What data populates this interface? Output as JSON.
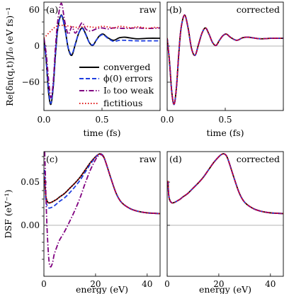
{
  "chart_data": [
    {
      "id": "a",
      "type": "line",
      "panel_label": "(a)",
      "tag": "raw",
      "xlabel": "time (fs)",
      "ylabel": "Re[δn(q,t)]/I₀ (eV fs)⁻¹",
      "xlim": [
        0,
        1.0
      ],
      "ylim": [
        -140,
        70
      ],
      "xticks": [
        0.0,
        0.5
      ],
      "xtick_labels": [
        "0.0",
        "0.5"
      ],
      "yticks": [
        60,
        0,
        -60
      ],
      "ytick_labels": [
        "60",
        "0",
        "−60"
      ],
      "grid": false,
      "zero_line": true,
      "legend": {
        "placement": "center-right",
        "entries": [
          "converged",
          "ϕ(0) errors",
          "I₀ too weak",
          "fictitious"
        ]
      },
      "series": [
        {
          "name": "converged",
          "color": "#000000",
          "dash": "solid",
          "x": [
            0,
            0.02,
            0.04,
            0.06,
            0.08,
            0.1,
            0.12,
            0.15,
            0.18,
            0.21,
            0.24,
            0.27,
            0.3,
            0.33,
            0.36,
            0.39,
            0.42,
            0.45,
            0.48,
            0.51,
            0.55,
            0.6,
            0.65,
            0.7,
            0.8,
            0.9,
            1.0
          ],
          "y": [
            0,
            -45,
            -105,
            -128,
            -95,
            -30,
            20,
            45,
            20,
            -20,
            -33,
            -12,
            10,
            20,
            8,
            -8,
            -14,
            -4,
            5,
            8,
            1,
            -4,
            1,
            2,
            -1,
            0,
            0
          ]
        },
        {
          "name": "ϕ(0) errors",
          "color": "#1f3fe0",
          "dash": "dashed",
          "x": [
            0,
            0.02,
            0.04,
            0.06,
            0.08,
            0.1,
            0.12,
            0.15,
            0.18,
            0.21,
            0.24,
            0.27,
            0.3,
            0.33,
            0.36,
            0.39,
            0.42,
            0.45,
            0.48,
            0.51,
            0.55,
            0.6,
            0.65,
            0.7,
            0.8,
            0.9,
            1.0
          ],
          "y": [
            0,
            -43,
            -100,
            -126,
            -92,
            -28,
            20,
            44,
            19,
            -19,
            -31,
            -11,
            10,
            19,
            7,
            -8,
            -13,
            -4,
            4,
            7,
            0,
            -6,
            -4,
            -4,
            -5,
            -5,
            -5
          ]
        },
        {
          "name": "I₀ too weak",
          "color": "#800080",
          "dash": "dashdot",
          "x": [
            0,
            0.02,
            0.04,
            0.06,
            0.08,
            0.1,
            0.12,
            0.15,
            0.18,
            0.21,
            0.24,
            0.27,
            0.3,
            0.33,
            0.36,
            0.4,
            0.45,
            0.5,
            0.55,
            0.6,
            0.7,
            0.8,
            0.9,
            1.0
          ],
          "y": [
            0,
            -30,
            -80,
            -115,
            -85,
            -15,
            35,
            68,
            32,
            8,
            22,
            10,
            20,
            30,
            18,
            14,
            18,
            20,
            18,
            20,
            19,
            20,
            19,
            20
          ]
        },
        {
          "name": "fictitious",
          "color": "#e01818",
          "dash": "dotted",
          "x": [
            0,
            0.05,
            0.1,
            0.15,
            0.2,
            0.25,
            0.3,
            0.35,
            0.4,
            0.45,
            0.5,
            0.55,
            0.6,
            0.65,
            0.7,
            0.75,
            0.8,
            0.85,
            0.9,
            0.95,
            1.0
          ],
          "y": [
            0,
            12,
            22,
            25,
            24,
            22,
            21,
            23,
            22,
            21,
            23,
            22,
            20,
            23,
            22,
            20,
            22,
            21,
            19,
            21,
            20
          ]
        }
      ]
    },
    {
      "id": "b",
      "type": "line",
      "panel_label": "(b)",
      "tag": "corrected",
      "xlabel": "time (fs)",
      "ylabel": "",
      "xlim": [
        0,
        1.0
      ],
      "ylim": [
        -140,
        70
      ],
      "xticks": [
        0.0,
        0.5
      ],
      "xtick_labels": [
        "0.0",
        "0.5"
      ],
      "yticks": [
        60,
        0,
        -60
      ],
      "ytick_labels": [],
      "grid": false,
      "zero_line": true,
      "series": [
        {
          "name": "converged",
          "color": "#000000",
          "dash": "solid",
          "x": [
            0,
            0.02,
            0.04,
            0.06,
            0.08,
            0.1,
            0.12,
            0.15,
            0.18,
            0.21,
            0.24,
            0.27,
            0.3,
            0.33,
            0.36,
            0.39,
            0.42,
            0.45,
            0.48,
            0.51,
            0.55,
            0.6,
            0.65,
            0.7,
            0.8,
            0.9,
            1.0
          ],
          "y": [
            0,
            -45,
            -105,
            -128,
            -95,
            -30,
            20,
            45,
            20,
            -20,
            -33,
            -12,
            10,
            20,
            8,
            -8,
            -14,
            -4,
            5,
            8,
            1,
            -4,
            1,
            2,
            -1,
            0,
            0
          ]
        },
        {
          "name": "ϕ(0) errors",
          "color": "#1f3fe0",
          "dash": "dashed",
          "x": [
            0,
            0.02,
            0.04,
            0.06,
            0.08,
            0.1,
            0.12,
            0.15,
            0.18,
            0.21,
            0.24,
            0.27,
            0.3,
            0.33,
            0.36,
            0.39,
            0.42,
            0.45,
            0.48,
            0.51,
            0.55,
            0.6,
            0.65,
            0.7,
            0.8,
            0.9,
            1.0
          ],
          "y": [
            0,
            -45,
            -105,
            -128,
            -95,
            -30,
            20,
            45,
            20,
            -20,
            -33,
            -12,
            10,
            20,
            8,
            -8,
            -14,
            -4,
            5,
            8,
            1,
            -4,
            1,
            2,
            -1,
            0,
            0
          ]
        },
        {
          "name": "I₀ too weak",
          "color": "#800080",
          "dash": "dashdot",
          "x": [
            0,
            0.02,
            0.04,
            0.06,
            0.08,
            0.1,
            0.12,
            0.15,
            0.18,
            0.21,
            0.24,
            0.27,
            0.3,
            0.33,
            0.36,
            0.39,
            0.42,
            0.45,
            0.48,
            0.51,
            0.55,
            0.6,
            0.65,
            0.7,
            0.8,
            0.9,
            1.0
          ],
          "y": [
            0,
            -45,
            -105,
            -128,
            -95,
            -30,
            20,
            45,
            20,
            -20,
            -33,
            -12,
            10,
            20,
            8,
            -8,
            -14,
            -4,
            5,
            8,
            1,
            -4,
            1,
            2,
            -1,
            0,
            0
          ]
        },
        {
          "name": "fictitious",
          "color": "#e01818",
          "dash": "dotted",
          "x": [
            0,
            0.02,
            0.04,
            0.06,
            0.08,
            0.1,
            0.12,
            0.15,
            0.18,
            0.21,
            0.24,
            0.27,
            0.3,
            0.33,
            0.36,
            0.39,
            0.42,
            0.45,
            0.48,
            0.51,
            0.55,
            0.6,
            0.65,
            0.7,
            0.8,
            0.9,
            1.0
          ],
          "y": [
            0,
            -45,
            -105,
            -128,
            -95,
            -30,
            20,
            45,
            20,
            -20,
            -33,
            -12,
            10,
            20,
            8,
            -8,
            -14,
            -4,
            5,
            8,
            1,
            -4,
            1,
            2,
            -1,
            0,
            0
          ]
        }
      ]
    },
    {
      "id": "c",
      "type": "line",
      "panel_label": "(c)",
      "tag": "raw",
      "xlabel": "energy (eV)",
      "ylabel": "DSF (eV⁻¹)",
      "xlim": [
        0,
        45
      ],
      "ylim": [
        -0.085,
        0.085
      ],
      "xticks": [
        0,
        20,
        40
      ],
      "xtick_labels": [
        "0",
        "20",
        "40"
      ],
      "yticks": [
        0.05,
        0.0
      ],
      "ytick_labels": [
        "0.05",
        "0.00"
      ],
      "grid": false,
      "zero_line": true,
      "series": [
        {
          "name": "converged",
          "color": "#000000",
          "dash": "solid",
          "x": [
            0.3,
            0.6,
            1,
            1.5,
            2,
            3,
            4,
            5,
            6,
            8,
            10,
            12,
            14,
            16,
            18,
            20,
            21,
            22,
            23,
            24,
            26,
            28,
            30,
            33,
            36,
            40,
            45
          ],
          "y": [
            0.05,
            0.028,
            0.02,
            0.016,
            0.015,
            0.016,
            0.018,
            0.02,
            0.023,
            0.028,
            0.035,
            0.042,
            0.05,
            0.06,
            0.07,
            0.078,
            0.081,
            0.082,
            0.079,
            0.07,
            0.048,
            0.028,
            0.016,
            0.008,
            0.004,
            0.0015,
            0.0005
          ]
        },
        {
          "name": "ϕ(0) errors",
          "color": "#1f3fe0",
          "dash": "dashed",
          "x": [
            0.3,
            0.6,
            1,
            1.5,
            2,
            3,
            4,
            5,
            6,
            8,
            10,
            12,
            14,
            16,
            18,
            20,
            21,
            22,
            23,
            24,
            26,
            28,
            30,
            33,
            36,
            40,
            45
          ],
          "y": [
            0.06,
            0.025,
            0.014,
            0.01,
            0.008,
            0.009,
            0.011,
            0.014,
            0.017,
            0.022,
            0.029,
            0.037,
            0.046,
            0.057,
            0.068,
            0.077,
            0.081,
            0.082,
            0.079,
            0.07,
            0.048,
            0.028,
            0.016,
            0.008,
            0.004,
            0.0015,
            0.0005
          ]
        },
        {
          "name": "I₀ too weak",
          "color": "#800080",
          "dash": "dashdot",
          "x": [
            0.3,
            0.6,
            1,
            1.5,
            2,
            2.5,
            3,
            3.5,
            4,
            5,
            6,
            8,
            10,
            12,
            14,
            16,
            18,
            20,
            21,
            22,
            23,
            24,
            26,
            28,
            30,
            33,
            36,
            40,
            45
          ],
          "y": [
            0.085,
            0.05,
            0.0,
            -0.04,
            -0.065,
            -0.072,
            -0.07,
            -0.064,
            -0.055,
            -0.045,
            -0.036,
            -0.024,
            -0.01,
            0.005,
            0.022,
            0.042,
            0.06,
            0.074,
            0.079,
            0.081,
            0.078,
            0.07,
            0.048,
            0.028,
            0.016,
            0.008,
            0.004,
            0.0015,
            0.0005
          ]
        },
        {
          "name": "fictitious",
          "color": "#e01818",
          "dash": "dotted",
          "x": [
            0.3,
            0.6,
            1,
            1.5,
            2,
            3,
            4,
            5,
            6,
            8,
            10,
            12,
            14,
            16,
            18,
            20,
            21,
            22,
            23,
            24,
            26,
            28,
            30,
            33,
            36,
            40,
            45
          ],
          "y": [
            0.05,
            0.028,
            0.02,
            0.016,
            0.015,
            0.016,
            0.018,
            0.02,
            0.023,
            0.028,
            0.035,
            0.042,
            0.05,
            0.06,
            0.07,
            0.078,
            0.081,
            0.082,
            0.079,
            0.07,
            0.048,
            0.028,
            0.016,
            0.008,
            0.004,
            0.0015,
            0.0005
          ]
        }
      ]
    },
    {
      "id": "d",
      "type": "line",
      "panel_label": "(d)",
      "tag": "corrected",
      "xlabel": "energy (eV)",
      "ylabel": "",
      "xlim": [
        0,
        45
      ],
      "ylim": [
        -0.085,
        0.085
      ],
      "xticks": [
        0,
        20,
        40
      ],
      "xtick_labels": [
        "0",
        "20",
        "40"
      ],
      "yticks": [
        0.05,
        0.0
      ],
      "ytick_labels": [],
      "grid": false,
      "zero_line": true,
      "series": [
        {
          "name": "converged",
          "color": "#000000",
          "dash": "solid",
          "x": [
            0.3,
            0.6,
            1,
            1.5,
            2,
            3,
            4,
            5,
            6,
            8,
            10,
            12,
            14,
            16,
            18,
            20,
            21,
            22,
            23,
            24,
            26,
            28,
            30,
            33,
            36,
            40,
            45
          ],
          "y": [
            0.045,
            0.026,
            0.019,
            0.016,
            0.015,
            0.016,
            0.018,
            0.02,
            0.023,
            0.028,
            0.035,
            0.042,
            0.05,
            0.06,
            0.07,
            0.078,
            0.081,
            0.082,
            0.079,
            0.07,
            0.048,
            0.028,
            0.016,
            0.008,
            0.004,
            0.0015,
            0.0005
          ]
        },
        {
          "name": "ϕ(0) errors",
          "color": "#1f3fe0",
          "dash": "dashed",
          "x": [
            0.3,
            0.6,
            1,
            1.5,
            2,
            3,
            4,
            5,
            6,
            8,
            10,
            12,
            14,
            16,
            18,
            20,
            21,
            22,
            23,
            24,
            26,
            28,
            30,
            33,
            36,
            40,
            45
          ],
          "y": [
            0.045,
            0.026,
            0.019,
            0.016,
            0.015,
            0.016,
            0.018,
            0.02,
            0.023,
            0.028,
            0.035,
            0.042,
            0.05,
            0.06,
            0.07,
            0.078,
            0.081,
            0.082,
            0.079,
            0.07,
            0.048,
            0.028,
            0.016,
            0.008,
            0.004,
            0.0015,
            0.0005
          ]
        },
        {
          "name": "I₀ too weak",
          "color": "#800080",
          "dash": "dashdot",
          "x": [
            0.3,
            0.6,
            1,
            1.5,
            2,
            3,
            4,
            5,
            6,
            8,
            10,
            12,
            14,
            16,
            18,
            20,
            21,
            22,
            23,
            24,
            26,
            28,
            30,
            33,
            36,
            40,
            45
          ],
          "y": [
            0.045,
            0.026,
            0.019,
            0.016,
            0.015,
            0.016,
            0.018,
            0.02,
            0.023,
            0.028,
            0.035,
            0.042,
            0.05,
            0.06,
            0.07,
            0.078,
            0.081,
            0.082,
            0.079,
            0.07,
            0.048,
            0.028,
            0.016,
            0.008,
            0.004,
            0.0015,
            0.0005
          ]
        },
        {
          "name": "fictitious",
          "color": "#e01818",
          "dash": "dotted",
          "x": [
            0.3,
            0.6,
            1,
            1.5,
            2,
            3,
            4,
            5,
            6,
            8,
            10,
            12,
            14,
            16,
            18,
            20,
            21,
            22,
            23,
            24,
            26,
            28,
            30,
            33,
            36,
            40,
            45
          ],
          "y": [
            0.045,
            0.026,
            0.019,
            0.016,
            0.015,
            0.016,
            0.018,
            0.02,
            0.023,
            0.028,
            0.035,
            0.042,
            0.05,
            0.06,
            0.07,
            0.078,
            0.081,
            0.082,
            0.079,
            0.07,
            0.048,
            0.028,
            0.016,
            0.008,
            0.004,
            0.0015,
            0.0005
          ]
        }
      ]
    }
  ]
}
